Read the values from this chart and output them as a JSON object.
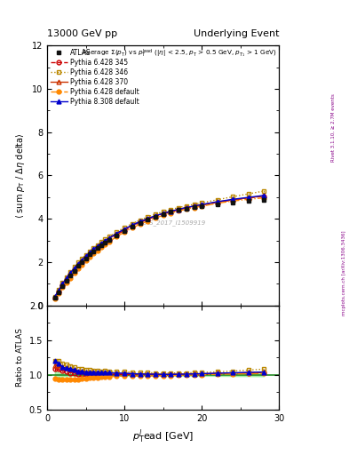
{
  "title_left": "13000 GeV pp",
  "title_right": "Underlying Event",
  "watermark": "ATLAS_2017_I1509919",
  "right_label": "mcplots.cern.ch [arXiv:1306.3436]",
  "right_label2": "Rivet 3.1.10, ≥ 2.7M events",
  "xlim": [
    0,
    30
  ],
  "ylim_main": [
    0,
    12
  ],
  "ylim_ratio": [
    0.5,
    2.0
  ],
  "series": [
    {
      "label": "ATLAS",
      "color": "#111111",
      "marker": "s",
      "markersize": 3.5,
      "linestyle": "none",
      "filled": true,
      "x": [
        1.0,
        1.5,
        2.0,
        2.5,
        3.0,
        3.5,
        4.0,
        4.5,
        5.0,
        5.5,
        6.0,
        6.5,
        7.0,
        7.5,
        8.0,
        9.0,
        10.0,
        11.0,
        12.0,
        13.0,
        14.0,
        15.0,
        16.0,
        17.0,
        18.0,
        19.0,
        20.0,
        22.0,
        24.0,
        26.0,
        28.0
      ],
      "y": [
        0.35,
        0.6,
        0.9,
        1.15,
        1.38,
        1.6,
        1.82,
        2.0,
        2.18,
        2.35,
        2.5,
        2.65,
        2.78,
        2.9,
        3.02,
        3.25,
        3.45,
        3.65,
        3.82,
        3.97,
        4.1,
        4.22,
        4.32,
        4.4,
        4.47,
        4.53,
        4.58,
        4.68,
        4.76,
        4.82,
        4.88
      ],
      "yerr": [
        0.02,
        0.02,
        0.02,
        0.02,
        0.02,
        0.02,
        0.03,
        0.03,
        0.03,
        0.03,
        0.03,
        0.03,
        0.03,
        0.03,
        0.03,
        0.04,
        0.04,
        0.04,
        0.04,
        0.04,
        0.05,
        0.05,
        0.05,
        0.05,
        0.06,
        0.06,
        0.06,
        0.07,
        0.08,
        0.09,
        0.1
      ]
    },
    {
      "label": "Pythia 6.428 345",
      "color": "#cc0000",
      "marker": "o",
      "markersize": 3.5,
      "linestyle": "--",
      "filled": false,
      "x": [
        1.0,
        1.5,
        2.0,
        2.5,
        3.0,
        3.5,
        4.0,
        4.5,
        5.0,
        5.5,
        6.0,
        6.5,
        7.0,
        7.5,
        8.0,
        9.0,
        10.0,
        11.0,
        12.0,
        13.0,
        14.0,
        15.0,
        16.0,
        17.0,
        18.0,
        19.0,
        20.0,
        22.0,
        24.0,
        26.0,
        28.0
      ],
      "y": [
        0.38,
        0.65,
        0.95,
        1.2,
        1.42,
        1.64,
        1.84,
        2.02,
        2.2,
        2.36,
        2.52,
        2.66,
        2.79,
        2.92,
        3.04,
        3.27,
        3.47,
        3.66,
        3.83,
        3.98,
        4.11,
        4.22,
        4.33,
        4.42,
        4.5,
        4.57,
        4.63,
        4.76,
        4.87,
        4.96,
        5.05
      ],
      "yerr": [
        0.01,
        0.01,
        0.01,
        0.01,
        0.01,
        0.01,
        0.01,
        0.01,
        0.01,
        0.01,
        0.01,
        0.01,
        0.01,
        0.01,
        0.01,
        0.01,
        0.01,
        0.01,
        0.01,
        0.01,
        0.01,
        0.01,
        0.01,
        0.01,
        0.01,
        0.01,
        0.01,
        0.02,
        0.02,
        0.02,
        0.02
      ]
    },
    {
      "label": "Pythia 6.428 346",
      "color": "#bb8800",
      "marker": "s",
      "markersize": 3.5,
      "linestyle": ":",
      "filled": false,
      "x": [
        1.0,
        1.5,
        2.0,
        2.5,
        3.0,
        3.5,
        4.0,
        4.5,
        5.0,
        5.5,
        6.0,
        6.5,
        7.0,
        7.5,
        8.0,
        9.0,
        10.0,
        11.0,
        12.0,
        13.0,
        14.0,
        15.0,
        16.0,
        17.0,
        18.0,
        19.0,
        20.0,
        22.0,
        24.0,
        26.0,
        28.0
      ],
      "y": [
        0.42,
        0.72,
        1.05,
        1.32,
        1.56,
        1.78,
        1.98,
        2.17,
        2.34,
        2.51,
        2.66,
        2.8,
        2.93,
        3.06,
        3.17,
        3.4,
        3.6,
        3.78,
        3.94,
        4.09,
        4.22,
        4.33,
        4.43,
        4.52,
        4.6,
        4.67,
        4.74,
        4.88,
        5.02,
        5.15,
        5.28
      ],
      "yerr": [
        0.01,
        0.01,
        0.01,
        0.01,
        0.01,
        0.01,
        0.01,
        0.01,
        0.01,
        0.01,
        0.01,
        0.01,
        0.01,
        0.01,
        0.01,
        0.01,
        0.01,
        0.01,
        0.01,
        0.01,
        0.01,
        0.01,
        0.01,
        0.01,
        0.01,
        0.01,
        0.01,
        0.02,
        0.02,
        0.02,
        0.03
      ]
    },
    {
      "label": "Pythia 6.428 370",
      "color": "#cc3300",
      "marker": "^",
      "markersize": 3.5,
      "linestyle": "-",
      "filled": false,
      "x": [
        1.0,
        1.5,
        2.0,
        2.5,
        3.0,
        3.5,
        4.0,
        4.5,
        5.0,
        5.5,
        6.0,
        6.5,
        7.0,
        7.5,
        8.0,
        9.0,
        10.0,
        11.0,
        12.0,
        13.0,
        14.0,
        15.0,
        16.0,
        17.0,
        18.0,
        19.0,
        20.0,
        22.0,
        24.0,
        26.0,
        28.0
      ],
      "y": [
        0.4,
        0.68,
        1.0,
        1.26,
        1.49,
        1.71,
        1.91,
        2.1,
        2.27,
        2.44,
        2.59,
        2.73,
        2.86,
        2.99,
        3.1,
        3.32,
        3.52,
        3.7,
        3.87,
        4.01,
        4.14,
        4.25,
        4.35,
        4.44,
        4.52,
        4.59,
        4.65,
        4.78,
        4.88,
        4.97,
        5.06
      ],
      "yerr": [
        0.01,
        0.01,
        0.01,
        0.01,
        0.01,
        0.01,
        0.01,
        0.01,
        0.01,
        0.01,
        0.01,
        0.01,
        0.01,
        0.01,
        0.01,
        0.01,
        0.01,
        0.01,
        0.01,
        0.01,
        0.01,
        0.01,
        0.01,
        0.01,
        0.01,
        0.01,
        0.01,
        0.01,
        0.02,
        0.02,
        0.02
      ]
    },
    {
      "label": "Pythia 6.428 default",
      "color": "#ff8800",
      "marker": "o",
      "markersize": 3.5,
      "linestyle": "-.",
      "filled": true,
      "x": [
        1.0,
        1.5,
        2.0,
        2.5,
        3.0,
        3.5,
        4.0,
        4.5,
        5.0,
        5.5,
        6.0,
        6.5,
        7.0,
        7.5,
        8.0,
        9.0,
        10.0,
        11.0,
        12.0,
        13.0,
        14.0,
        15.0,
        16.0,
        17.0,
        18.0,
        19.0,
        20.0,
        22.0,
        24.0,
        26.0,
        28.0
      ],
      "y": [
        0.33,
        0.56,
        0.84,
        1.07,
        1.28,
        1.49,
        1.7,
        1.89,
        2.07,
        2.24,
        2.4,
        2.55,
        2.69,
        2.82,
        2.94,
        3.18,
        3.39,
        3.58,
        3.75,
        3.9,
        4.04,
        4.16,
        4.27,
        4.36,
        4.45,
        4.52,
        4.58,
        4.72,
        4.82,
        4.9,
        4.97
      ],
      "yerr": [
        0.01,
        0.01,
        0.01,
        0.01,
        0.01,
        0.01,
        0.01,
        0.01,
        0.01,
        0.01,
        0.01,
        0.01,
        0.01,
        0.01,
        0.01,
        0.01,
        0.01,
        0.01,
        0.01,
        0.01,
        0.01,
        0.01,
        0.01,
        0.01,
        0.01,
        0.01,
        0.01,
        0.01,
        0.02,
        0.02,
        0.02
      ]
    },
    {
      "label": "Pythia 8.308 default",
      "color": "#0000cc",
      "marker": "^",
      "markersize": 3.5,
      "linestyle": "-",
      "filled": true,
      "x": [
        1.0,
        1.5,
        2.0,
        2.5,
        3.0,
        3.5,
        4.0,
        4.5,
        5.0,
        5.5,
        6.0,
        6.5,
        7.0,
        7.5,
        8.0,
        9.0,
        10.0,
        11.0,
        12.0,
        13.0,
        14.0,
        15.0,
        16.0,
        17.0,
        18.0,
        19.0,
        20.0,
        22.0,
        24.0,
        26.0,
        28.0
      ],
      "y": [
        0.42,
        0.7,
        1.0,
        1.26,
        1.5,
        1.72,
        1.92,
        2.1,
        2.27,
        2.44,
        2.6,
        2.74,
        2.87,
        3.0,
        3.11,
        3.33,
        3.53,
        3.71,
        3.87,
        4.01,
        4.14,
        4.25,
        4.35,
        4.44,
        4.52,
        4.59,
        4.66,
        4.79,
        4.9,
        4.99,
        5.08
      ],
      "yerr": [
        0.01,
        0.01,
        0.01,
        0.01,
        0.01,
        0.01,
        0.01,
        0.01,
        0.01,
        0.01,
        0.01,
        0.01,
        0.01,
        0.01,
        0.01,
        0.01,
        0.01,
        0.01,
        0.01,
        0.01,
        0.01,
        0.01,
        0.01,
        0.01,
        0.01,
        0.01,
        0.01,
        0.01,
        0.02,
        0.02,
        0.02
      ]
    }
  ]
}
